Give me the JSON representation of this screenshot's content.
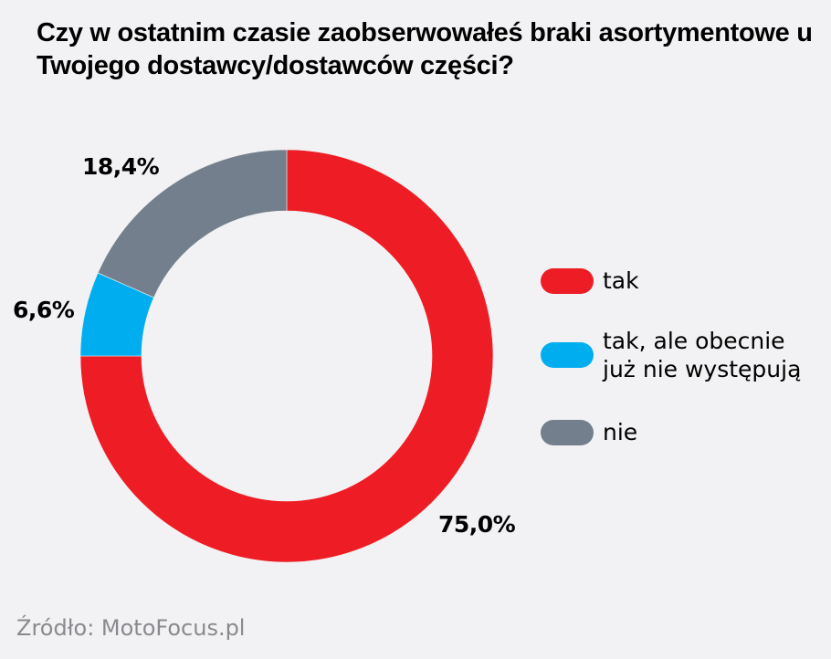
{
  "chart_data": {
    "type": "pie",
    "variant": "donut",
    "title": "Czy w ostatnim czasie zaobserwowałeś braki asortymentowe u Twojego dostawcy/dostawców części?",
    "categories": [
      "tak",
      "tak, ale obecnie już nie występują",
      "nie"
    ],
    "values": [
      75.0,
      6.6,
      18.4
    ],
    "data_labels": [
      "75,0%",
      "6,6%",
      "18,4%"
    ],
    "colors": [
      "#ee1d25",
      "#00aeef",
      "#737f8c"
    ],
    "start": "top",
    "direction": "clockwise",
    "legend_placement": "right"
  },
  "source": "Źródło: MotoFocus.pl"
}
